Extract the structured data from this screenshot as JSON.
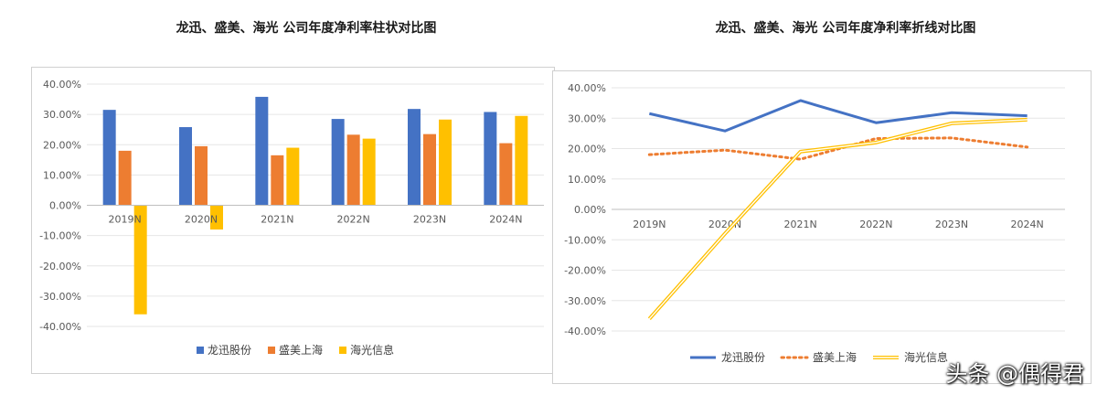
{
  "watermark": "头条 @偶得君",
  "colors": {
    "longxun": "#4472C4",
    "shengmei": "#ED7D31",
    "haiguang": "#FFC000"
  },
  "chart_data": [
    {
      "type": "bar",
      "title": "龙迅、盛美、海光 公司年度净利率柱状对比图",
      "categories": [
        "2019N",
        "2020N",
        "2021N",
        "2022N",
        "2023N",
        "2024N"
      ],
      "yticks": [
        "40.00%",
        "30.00%",
        "20.00%",
        "10.00%",
        "0.00%",
        "-10.00%",
        "-20.00%",
        "-30.00%",
        "-40.00%"
      ],
      "ylim": [
        -40,
        40
      ],
      "grid": true,
      "legend_position": "bottom",
      "series": [
        {
          "name": "龙迅股份",
          "color": "#4472C4",
          "values": [
            31.5,
            25.8,
            35.8,
            28.5,
            31.8,
            30.8
          ]
        },
        {
          "name": "盛美上海",
          "color": "#ED7D31",
          "values": [
            18.0,
            19.5,
            16.5,
            23.3,
            23.5,
            20.5
          ]
        },
        {
          "name": "海光信息",
          "color": "#FFC000",
          "values": [
            -36.0,
            -8.0,
            19.0,
            22.0,
            28.3,
            29.5
          ]
        }
      ]
    },
    {
      "type": "line",
      "title": "龙迅、盛美、海光 公司年度净利率折线对比图",
      "categories": [
        "2019N",
        "2020N",
        "2021N",
        "2022N",
        "2023N",
        "2024N"
      ],
      "yticks": [
        "40.00%",
        "30.00%",
        "20.00%",
        "10.00%",
        "0.00%",
        "-10.00%",
        "-20.00%",
        "-30.00%",
        "-40.00%"
      ],
      "ylim": [
        -40,
        40
      ],
      "grid": true,
      "legend_position": "bottom",
      "series": [
        {
          "name": "龙迅股份",
          "color": "#4472C4",
          "style": "solid",
          "values": [
            31.5,
            25.8,
            35.8,
            28.5,
            31.8,
            30.8
          ]
        },
        {
          "name": "盛美上海",
          "color": "#ED7D31",
          "style": "dotted",
          "values": [
            18.0,
            19.5,
            16.5,
            23.3,
            23.5,
            20.5
          ]
        },
        {
          "name": "海光信息",
          "color": "#FFC000",
          "style": "double",
          "values": [
            -36.0,
            -8.0,
            19.0,
            22.0,
            28.3,
            29.5
          ]
        }
      ]
    }
  ]
}
